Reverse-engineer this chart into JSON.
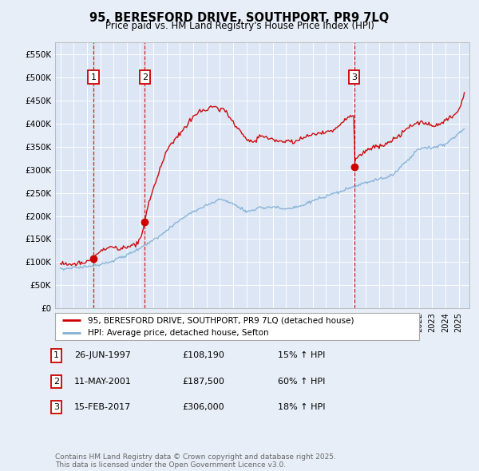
{
  "title": "95, BERESFORD DRIVE, SOUTHPORT, PR9 7LQ",
  "subtitle": "Price paid vs. HM Land Registry's House Price Index (HPI)",
  "background_color": "#e8eef7",
  "plot_bg_color": "#dce6f5",
  "grid_color": "#ffffff",
  "red_line_color": "#cc0000",
  "blue_line_color": "#7fafd4",
  "sale_marker_color": "#cc0000",
  "vline_color": "#cc0000",
  "ylim": [
    0,
    575000
  ],
  "yticks": [
    0,
    50000,
    100000,
    150000,
    200000,
    250000,
    300000,
    350000,
    400000,
    450000,
    500000,
    550000
  ],
  "ytick_labels": [
    "£0",
    "£50K",
    "£100K",
    "£150K",
    "£200K",
    "£250K",
    "£300K",
    "£350K",
    "£400K",
    "£450K",
    "£500K",
    "£550K"
  ],
  "xlim_start": 1994.6,
  "xlim_end": 2025.8,
  "sale1_date": 1997.48,
  "sale1_price": 108190,
  "sale1_label": "1",
  "sale2_date": 2001.36,
  "sale2_price": 187500,
  "sale2_label": "2",
  "sale3_date": 2017.12,
  "sale3_price": 306000,
  "sale3_label": "3",
  "legend_red": "95, BERESFORD DRIVE, SOUTHPORT, PR9 7LQ (detached house)",
  "legend_blue": "HPI: Average price, detached house, Sefton",
  "table_rows": [
    {
      "label": "1",
      "date": "26-JUN-1997",
      "price": "£108,190",
      "change": "15% ↑ HPI"
    },
    {
      "label": "2",
      "date": "11-MAY-2001",
      "price": "£187,500",
      "change": "60% ↑ HPI"
    },
    {
      "label": "3",
      "date": "15-FEB-2017",
      "price": "£306,000",
      "change": "18% ↑ HPI"
    }
  ],
  "footnote": "Contains HM Land Registry data © Crown copyright and database right 2025.\nThis data is licensed under the Open Government Licence v3.0."
}
